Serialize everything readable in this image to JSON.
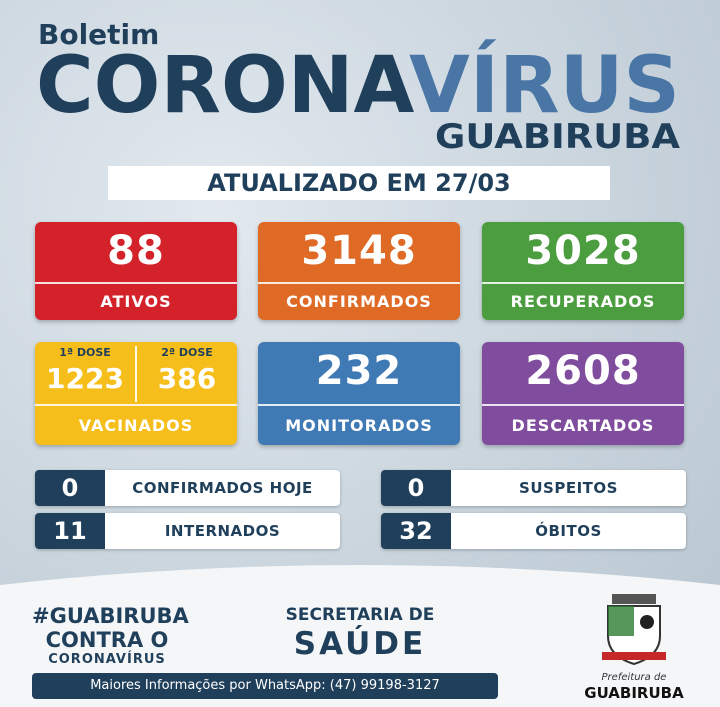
{
  "header": {
    "kicker": "Boletim",
    "title_part1": "CORONA",
    "title_part2": "VÍRUS",
    "city": "GUABIRUBA",
    "updated": "ATUALIZADO EM 27/03"
  },
  "cards": [
    {
      "value": 88,
      "label": "ATIVOS"
    },
    {
      "value": 3148,
      "label": "CONFIRMADOS"
    },
    {
      "value": 3028,
      "label": "RECUPERADOS"
    },
    {
      "value": 232,
      "label": "MONITORADOS"
    },
    {
      "value": 2608,
      "label": "DESCARTADOS"
    }
  ],
  "vaccinated": {
    "doses": [
      {
        "label": "1ª DOSE",
        "value": 1223
      },
      {
        "label": "2ª DOSE",
        "value": 386
      }
    ],
    "label": "VACINADOS"
  },
  "stats": [
    {
      "value": 0,
      "label": "CONFIRMADOS HOJE"
    },
    {
      "value": 0,
      "label": "SUSPEITOS"
    },
    {
      "value": 11,
      "label": "INTERNADOS"
    },
    {
      "value": 32,
      "label": "ÓBITOS"
    }
  ],
  "footer": {
    "hashtag": "#GUABIRUBA",
    "slogan_line1": "CONTRA O",
    "slogan_line2": "CORONAVÍRUS",
    "department_line1": "SECRETARIA DE",
    "department_line2": "SAÚDE",
    "contact": "Maiores Informações por WhatsApp: (47) 99198-3127",
    "logo_caption": "Prefeitura de",
    "logo_city": "GUABIRUBA"
  }
}
